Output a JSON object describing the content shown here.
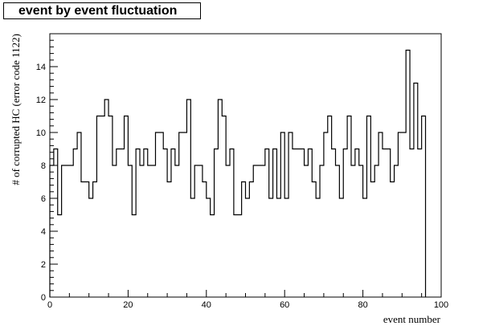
{
  "chart_data": {
    "type": "bar",
    "title": "event by event fluctuation",
    "xlabel": "event number",
    "ylabel": "# of corrupted HC (error code 1122)",
    "xlim": [
      0,
      100
    ],
    "ylim": [
      0,
      16
    ],
    "x_ticks": [
      0,
      20,
      40,
      60,
      80,
      100
    ],
    "y_ticks": [
      0,
      2,
      4,
      6,
      8,
      10,
      12,
      14
    ],
    "grid": false,
    "legend": "none",
    "bin_width": 1,
    "values": [
      8,
      9,
      5,
      8,
      8,
      8,
      9,
      10,
      7,
      7,
      6,
      7,
      11,
      11,
      12,
      11,
      8,
      9,
      9,
      11,
      8,
      5,
      9,
      8,
      9,
      8,
      8,
      10,
      10,
      9,
      7,
      9,
      8,
      10,
      10,
      12,
      6,
      8,
      8,
      7,
      6,
      5,
      9,
      12,
      11,
      8,
      9,
      5,
      5,
      7,
      6,
      7,
      8,
      8,
      8,
      9,
      6,
      9,
      6,
      10,
      6,
      10,
      9,
      9,
      9,
      8,
      9,
      7,
      6,
      8,
      10,
      11,
      9,
      8,
      6,
      9,
      11,
      8,
      9,
      8,
      6,
      11,
      7,
      8,
      10,
      9,
      9,
      7,
      8,
      10,
      10,
      15,
      9,
      13,
      9,
      11
    ]
  }
}
